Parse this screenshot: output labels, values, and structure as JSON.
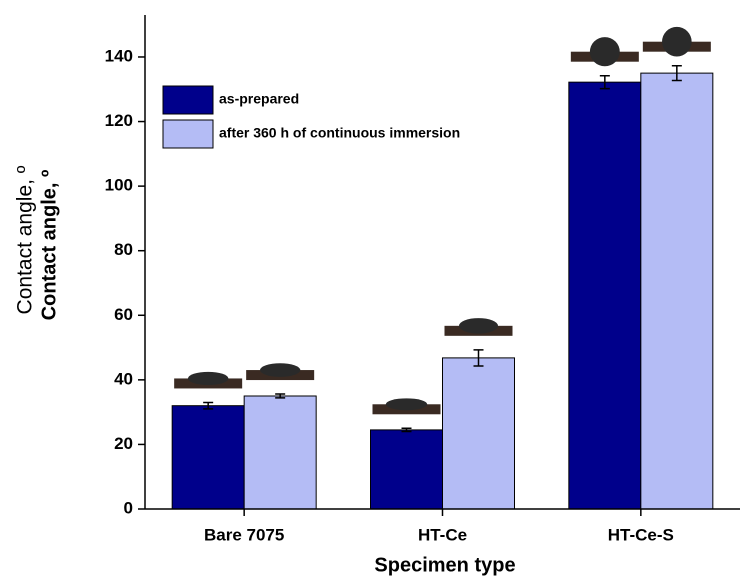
{
  "chart_data": {
    "type": "bar",
    "x_label": "Specimen type",
    "y_label": "Contact angle, º",
    "y_label_overlay": "Contact angle, º",
    "categories": [
      "Bare 7075",
      "HT-Ce",
      "HT-Ce-S"
    ],
    "series": [
      {
        "name": "as-prepared",
        "color": "#00008b",
        "values": [
          32,
          24.5,
          132.2
        ],
        "errors": [
          1,
          0.5,
          2
        ]
      },
      {
        "name": "after 360 h of continuous immersion",
        "color": "#b4bcf5",
        "values": [
          35,
          46.8,
          135
        ],
        "errors": [
          0.6,
          2.5,
          2.3
        ]
      }
    ],
    "ylim": [
      0,
      153
    ],
    "yticks": [
      0,
      20,
      40,
      60,
      80,
      100,
      120,
      140
    ],
    "legend": "upper left"
  }
}
